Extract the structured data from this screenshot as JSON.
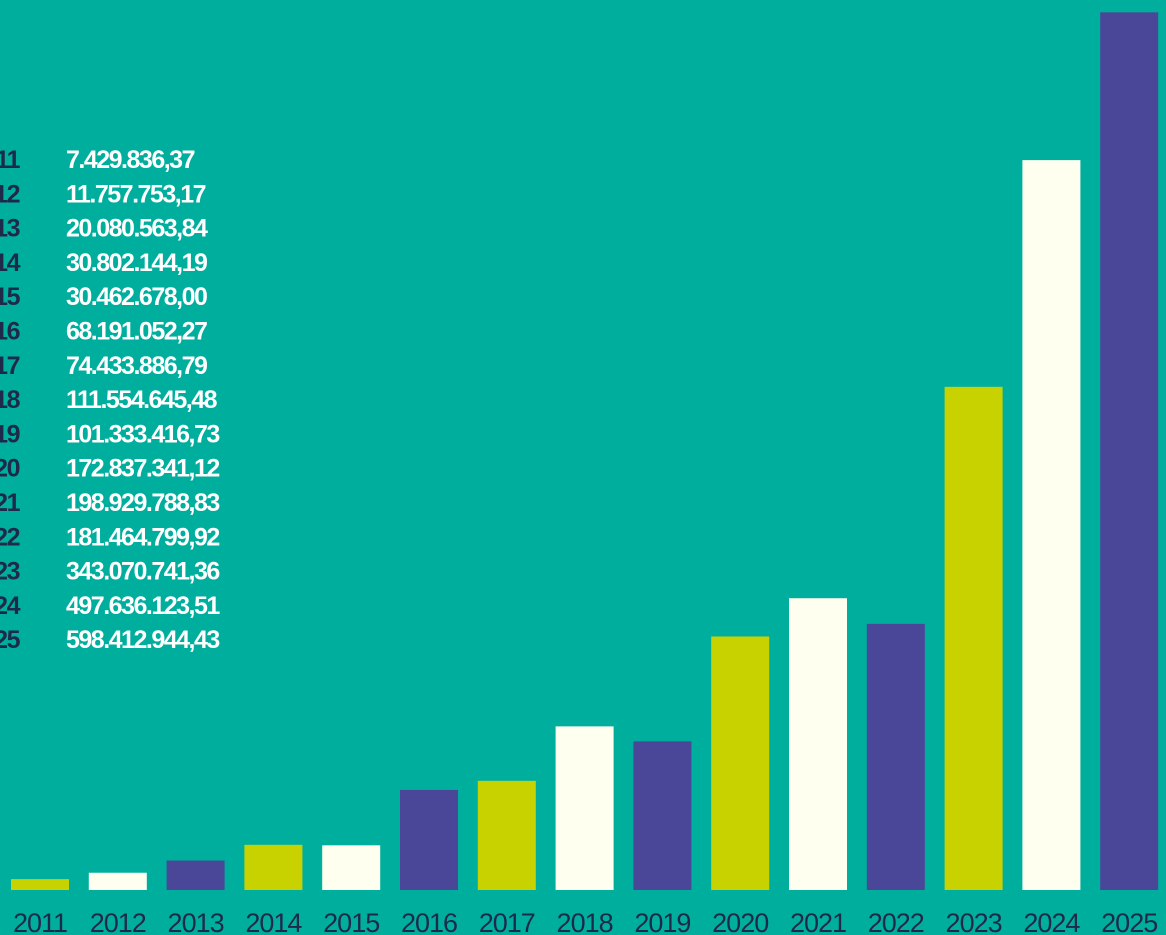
{
  "chart_data": {
    "type": "bar",
    "categories": [
      "2011",
      "2012",
      "2013",
      "2014",
      "2015",
      "2016",
      "2017",
      "2018",
      "2019",
      "2020",
      "2021",
      "2022",
      "2023",
      "2024",
      "2025"
    ],
    "values": [
      7429836.37,
      11757753.17,
      20080563.84,
      30802144.19,
      30462678.0,
      68191052.27,
      74433886.79,
      111554645.48,
      101333416.73,
      172837341.12,
      198929788.83,
      181464799.92,
      343070741.36,
      497636123.51,
      598412944.43
    ],
    "value_labels": [
      "7.429.836,37",
      "11.757.753,17",
      "20.080.563,84",
      "30.802.144,19",
      "30.462.678,00",
      "68.191.052,27",
      "74.433.886,79",
      "111.554.645,48",
      "101.333.416,73",
      "172.837.341,12",
      "198.929.788,83",
      "181.464.799,92",
      "343.070.741,36",
      "497.636.123,51",
      "598.412.944,43"
    ],
    "colors": [
      "#c8d200",
      "#fffff0",
      "#4a4799",
      "#c8d200",
      "#fffff0",
      "#4a4799",
      "#c8d200",
      "#fffff0",
      "#4a4799",
      "#c8d200",
      "#fffff0",
      "#4a4799",
      "#c8d200",
      "#fffff0",
      "#4a4799"
    ],
    "ylim": [
      0,
      600000000
    ]
  }
}
